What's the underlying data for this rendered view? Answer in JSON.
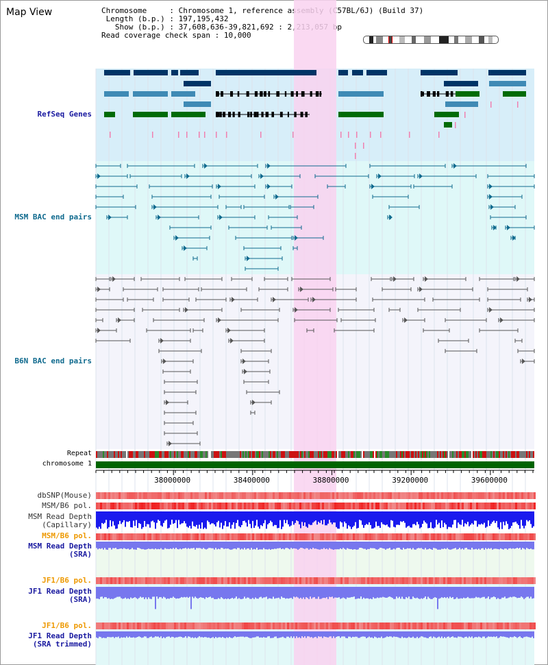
{
  "page_title": "Map View",
  "info": {
    "chromosome_label": "Chromosome",
    "chromosome_value": "Chromosome 1, reference assembly (C57BL/6J) (Build 37)",
    "length_label": "Length (b.p.)",
    "length_value": "197,195,432",
    "show_label": "Show (b.p.)",
    "show_value": "37,608,636-39,821,692 : 2,213,057 bp",
    "coverage_label": "Read coverage check span",
    "coverage_value": "10,000"
  },
  "tracks": {
    "refseq": "RefSeq Genes",
    "msm_bac": "MSM BAC end pairs",
    "b6n_bac": "B6N BAC end pairs",
    "repeat": "Repeat",
    "chromosome": "chromosome 1",
    "dbsnp": "dbSNP(Mouse)",
    "msm_b6_pol": "MSM/B6 pol.",
    "msm_depth_cap_1": "MSM Read Depth",
    "msm_depth_cap_2": "(Capillary)",
    "msm_b6_pol_2": "MSM/B6 pol.",
    "msm_depth_sra_1": "MSM Read Depth",
    "msm_depth_sra_2": "(SRA)",
    "jf1_b6_pol": "JF1/B6 pol.",
    "jf1_depth_sra_1": "JF1 Read Depth",
    "jf1_depth_sra_2": "(SRA)",
    "jf1_b6_pol_2": "JF1/B6 pol.",
    "jf1_depth_trim_1": "JF1 Read Depth",
    "jf1_depth_trim_2": "(SRA trimmed)"
  },
  "axis": {
    "ticks": [
      "38000000",
      "38400000",
      "38800000",
      "39200000",
      "39600000"
    ],
    "tick_values": [
      38000000,
      38400000,
      38800000,
      39200000,
      39600000
    ],
    "view_start": 37608636,
    "view_end": 39821692
  },
  "colors": {
    "highlight": "#f9d2f0",
    "refseq_bg": "#d7eef9",
    "msm_bg": "#dff8f8",
    "b6n_bg": "#f4f4fb",
    "gene_dark": "#003466",
    "gene_mid": "#3f8ab5",
    "gene_green": "#006b06",
    "msm_line": "#0f6a8e",
    "b6n_line": "#555555",
    "chrom_bar": "#006400",
    "snp_red": "#ee3333",
    "depth_blue": "#1a1aee",
    "depth_violet": "#7777ee",
    "label_blue": "#1a1aa0",
    "label_teal": "#0f6a8e",
    "label_orange": "#ee9900"
  }
}
